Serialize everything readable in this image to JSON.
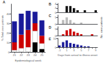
{
  "chart_data": [
    {
      "type": "bar",
      "title": "A",
      "categories": [
        "21",
        "22",
        "23",
        "24",
        "25"
      ],
      "series": [
        {
          "color": "black",
          "values": [
            0,
            0,
            0,
            10,
            3
          ]
        },
        {
          "color": "white",
          "values": [
            2,
            4,
            5,
            12,
            6
          ]
        },
        {
          "color": "#cc0000",
          "values": [
            8,
            14,
            18,
            8,
            8
          ]
        },
        {
          "color": "#1a1a99",
          "values": [
            22,
            22,
            20,
            12,
            16
          ]
        }
      ],
      "stacked": true,
      "xlabel": "Epidemiological week",
      "ylabel": "% Total case-patients",
      "ylim": [
        0,
        50
      ],
      "yticks": [
        0,
        10,
        20,
        30,
        40
      ],
      "grid": false
    },
    {
      "type": "bar",
      "title": "B",
      "categories": [
        "-1",
        null,
        "1",
        null,
        "3",
        null,
        "5",
        null,
        "7",
        null,
        "9"
      ],
      "values": [
        0,
        0,
        3,
        3,
        2,
        1,
        0,
        1,
        0,
        0,
        1
      ],
      "color": "#111111",
      "ylim": [
        0,
        4.25
      ],
      "yticks": [
        0,
        2,
        4
      ],
      "grid": false,
      "tick_labels": "y"
    },
    {
      "type": "bar",
      "title": "C",
      "categories": [
        "-1",
        null,
        "1",
        null,
        "3",
        null,
        "5",
        null,
        "7",
        null,
        "9"
      ],
      "values": [
        0,
        3,
        5,
        3,
        1,
        0,
        1,
        0,
        0,
        0,
        0
      ],
      "color": "#bbbbbb",
      "ylabel": "No. case-patients",
      "ylim": [
        0,
        6.75
      ],
      "yticks": [
        0,
        5
      ],
      "grid": false,
      "tick_labels": "y"
    },
    {
      "type": "bar",
      "title": "D",
      "categories": [
        "-1",
        null,
        "1",
        null,
        "3",
        null,
        "5",
        null,
        "7",
        null,
        "9"
      ],
      "values": [
        0,
        1,
        4,
        5,
        3,
        2,
        1,
        0,
        0,
        1,
        0
      ],
      "color": "#cc0000",
      "ylim": [
        0,
        6.75
      ],
      "yticks": [
        0,
        5
      ],
      "grid": false,
      "tick_labels": "y"
    },
    {
      "type": "bar",
      "title": "E",
      "categories": [
        "-1",
        null,
        "1",
        null,
        "3",
        null,
        "5",
        null,
        "7",
        null,
        "9"
      ],
      "values": [
        2,
        6,
        8,
        5,
        4,
        3,
        2,
        1,
        1,
        0,
        0
      ],
      "color": "#1a1a99",
      "xlabel": "Days from arrival to illness onset",
      "ylim": [
        0,
        10.5
      ],
      "yticks": [
        0,
        10
      ],
      "grid": false
    }
  ]
}
